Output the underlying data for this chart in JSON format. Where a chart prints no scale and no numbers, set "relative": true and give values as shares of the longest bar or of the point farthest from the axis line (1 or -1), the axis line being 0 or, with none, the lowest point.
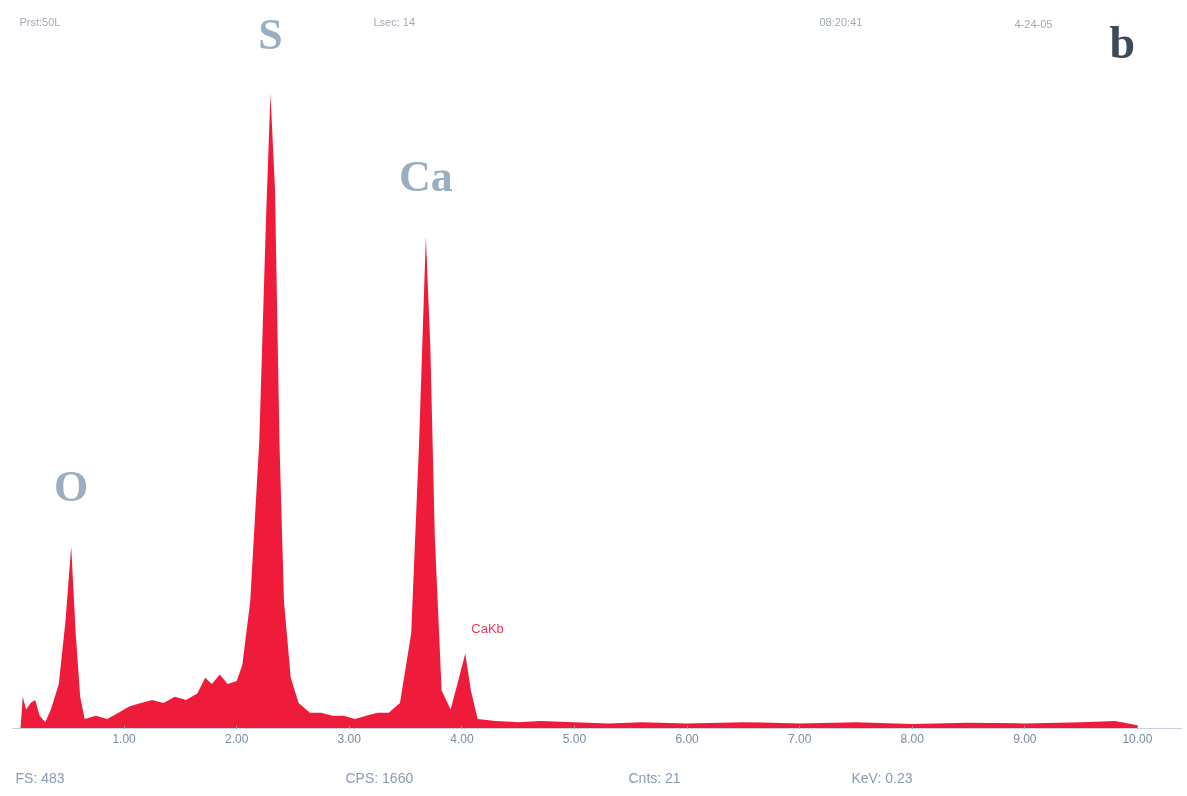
{
  "chart_data": {
    "type": "area",
    "relative": true,
    "color": "#ee1c3a",
    "grid": false,
    "tick_labels": "x",
    "xlim": [
      0,
      10.4
    ],
    "xticks": [
      {
        "value": 1,
        "label": "1.00"
      },
      {
        "value": 2,
        "label": "2.00"
      },
      {
        "value": 3,
        "label": "3.00"
      },
      {
        "value": 4,
        "label": "4.00"
      },
      {
        "value": 5,
        "label": "5.00"
      },
      {
        "value": 6,
        "label": "6.00"
      },
      {
        "value": 7,
        "label": "7.00"
      },
      {
        "value": 8,
        "label": "8.00"
      },
      {
        "value": 9,
        "label": "9.00"
      },
      {
        "value": 10,
        "label": "10.00"
      }
    ],
    "x": [
      0.08,
      0.1,
      0.13,
      0.17,
      0.21,
      0.25,
      0.3,
      0.35,
      0.42,
      0.48,
      0.53,
      0.57,
      0.61,
      0.65,
      0.75,
      0.85,
      0.95,
      1.05,
      1.15,
      1.25,
      1.35,
      1.45,
      1.55,
      1.65,
      1.72,
      1.78,
      1.85,
      1.92,
      2.0,
      2.05,
      2.12,
      2.2,
      2.26,
      2.3,
      2.34,
      2.38,
      2.42,
      2.48,
      2.55,
      2.65,
      2.75,
      2.85,
      2.95,
      3.05,
      3.15,
      3.25,
      3.35,
      3.45,
      3.55,
      3.62,
      3.68,
      3.72,
      3.76,
      3.82,
      3.9,
      3.96,
      4.03,
      4.08,
      4.14,
      4.3,
      4.5,
      4.7,
      5.0,
      5.3,
      5.6,
      6.0,
      6.5,
      7.0,
      7.5,
      8.0,
      8.5,
      9.0,
      9.5,
      9.8,
      10.0
    ],
    "values": [
      0,
      0.05,
      0.03,
      0.04,
      0.045,
      0.02,
      0.01,
      0.03,
      0.07,
      0.17,
      0.287,
      0.15,
      0.05,
      0.015,
      0.02,
      0.015,
      0.025,
      0.035,
      0.04,
      0.045,
      0.04,
      0.05,
      0.045,
      0.055,
      0.08,
      0.07,
      0.085,
      0.07,
      0.075,
      0.1,
      0.2,
      0.45,
      0.8,
      1.0,
      0.85,
      0.45,
      0.2,
      0.08,
      0.04,
      0.025,
      0.025,
      0.02,
      0.02,
      0.015,
      0.02,
      0.025,
      0.025,
      0.04,
      0.15,
      0.45,
      0.775,
      0.6,
      0.3,
      0.06,
      0.03,
      0.07,
      0.118,
      0.06,
      0.015,
      0.012,
      0.01,
      0.012,
      0.01,
      0.008,
      0.01,
      0.008,
      0.01,
      0.008,
      0.01,
      0.007,
      0.009,
      0.008,
      0.01,
      0.012,
      0.005
    ],
    "annotations": [
      "Prst:50L",
      "Lsec: 14",
      "08:20:41",
      "4-24-05",
      "b",
      "FS: 483",
      "CPS: 1660",
      "Cnts: 21",
      "KeV: 0.23",
      {
        "text": "O",
        "x": 0.53,
        "y": 0.287
      },
      {
        "text": "S",
        "x": 2.3,
        "y": 1.0
      },
      {
        "text": "Ca",
        "x": 3.68,
        "y": 0.775
      },
      {
        "text": "CaKb",
        "x": 4.03,
        "y": 0.118
      }
    ]
  }
}
